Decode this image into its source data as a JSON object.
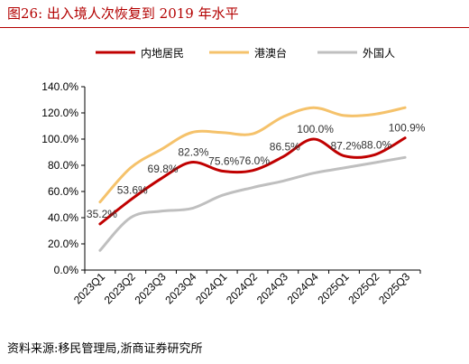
{
  "title": "图26:   出入境人次恢复到 2019 年水平",
  "source": "资料来源:移民管理局,浙商证券研究所",
  "chart_data": {
    "type": "line",
    "categories": [
      "2023Q1",
      "2023Q2",
      "2023Q3",
      "2023Q4",
      "2024Q1",
      "2024Q2",
      "2024Q3",
      "2024Q4",
      "2025Q1",
      "2025Q2",
      "2025Q3"
    ],
    "yticks": [
      "0.0%",
      "20.0%",
      "40.0%",
      "60.0%",
      "80.0%",
      "100.0%",
      "120.0%",
      "140.0%"
    ],
    "ylim": [
      0,
      140
    ],
    "grid": false,
    "legend_position": "top",
    "series": [
      {
        "name": "内地居民",
        "color": "#c00000",
        "values": [
          35.2,
          53.6,
          69.8,
          82.3,
          75.6,
          76.0,
          86.5,
          100.0,
          87.2,
          88.0,
          100.9
        ],
        "labels": [
          "35.2%",
          "53.6%",
          "69.8%",
          "82.3%",
          "75.6%",
          "76.0%",
          "86.5%",
          "100.0%",
          "87.2%",
          "88.0%",
          "100.9%"
        ]
      },
      {
        "name": "港澳台",
        "color": "#f5c26b",
        "values": [
          52,
          78,
          92,
          105,
          105,
          104,
          117,
          124,
          118,
          119,
          124
        ]
      },
      {
        "name": "外国人",
        "color": "#bfbfbf",
        "values": [
          15,
          40,
          45,
          47,
          57,
          63,
          68,
          74,
          78,
          82,
          86
        ]
      }
    ]
  }
}
